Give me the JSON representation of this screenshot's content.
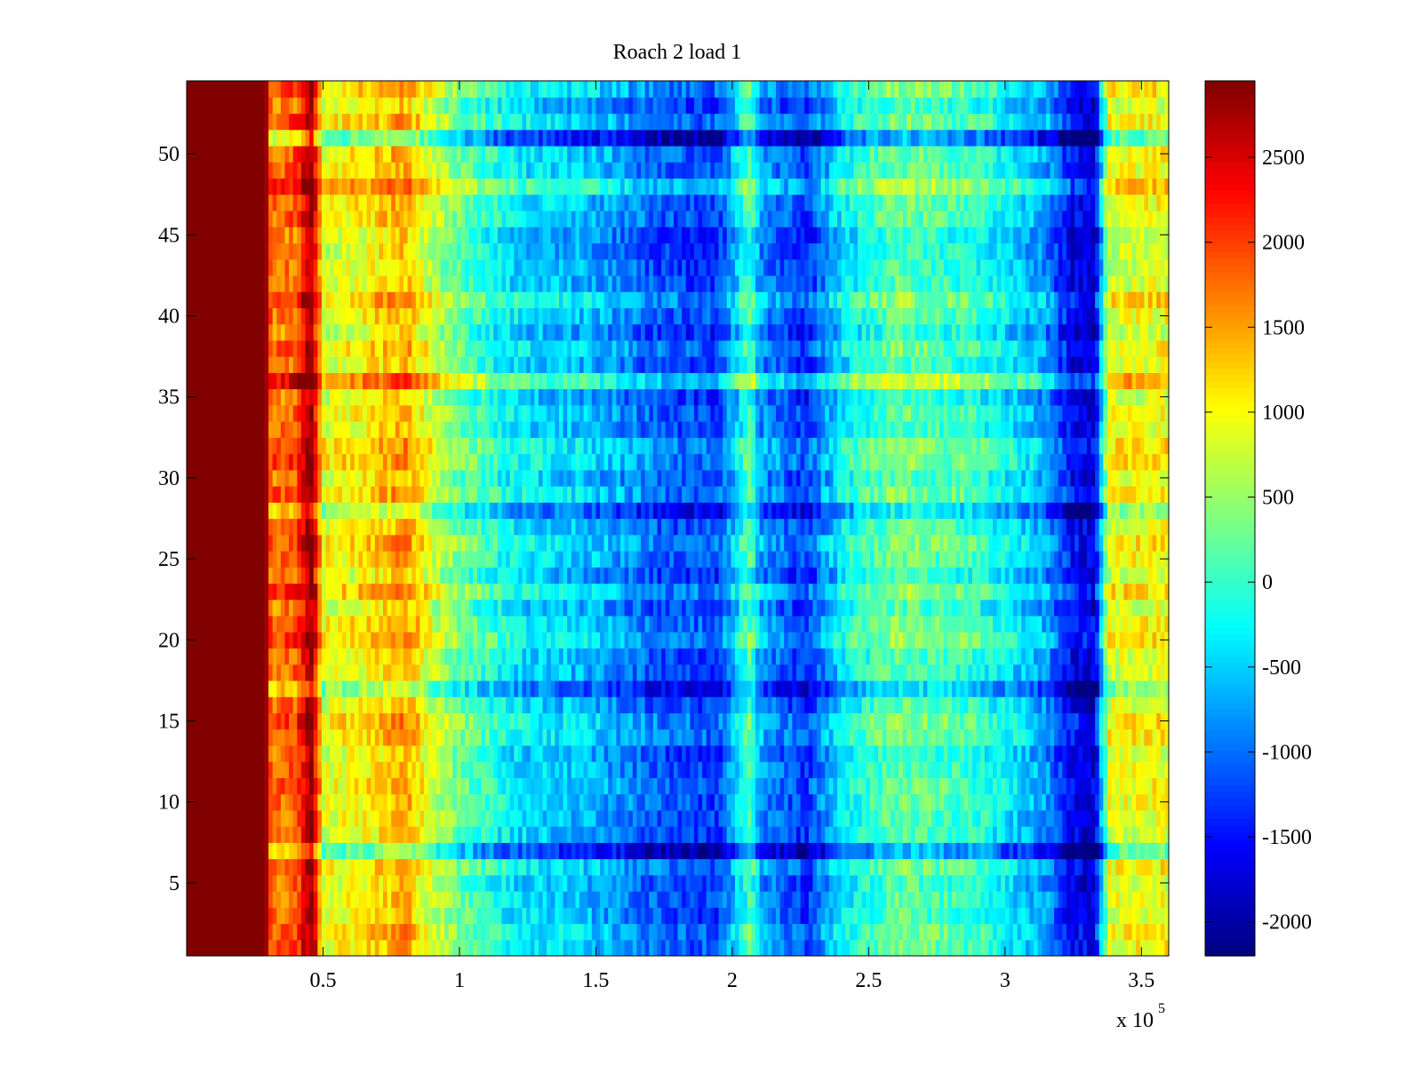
{
  "chart_data": {
    "type": "heatmap",
    "title": "Roach 2 load 1",
    "xlabel": "",
    "ylabel": "",
    "x_exponent_label": "x 10",
    "x_exponent_power": "5",
    "xlim": [
      0,
      3.6
    ],
    "ylim": [
      0.5,
      54.5
    ],
    "x_ticks": [
      0.5,
      1,
      1.5,
      2,
      2.5,
      3,
      3.5
    ],
    "x_tick_labels": [
      "0.5",
      "1",
      "1.5",
      "2",
      "2.5",
      "3",
      "3.5"
    ],
    "y_ticks": [
      5,
      10,
      15,
      20,
      25,
      30,
      35,
      40,
      45,
      50
    ],
    "y_tick_labels": [
      "5",
      "10",
      "15",
      "20",
      "25",
      "30",
      "35",
      "40",
      "45",
      "50"
    ],
    "rows": 54,
    "colormap": "jet",
    "color_range": [
      -2200,
      2950
    ],
    "colorbar_ticks": [
      2500,
      2000,
      1500,
      1000,
      500,
      0,
      -500,
      -1000,
      -1500,
      -2000
    ],
    "colorbar_tick_labels": [
      "2500",
      "2000",
      "1500",
      "1000",
      "500",
      "0",
      "-500",
      "-1000",
      "-1500",
      "-2000"
    ],
    "column_profile": [
      {
        "x": 0.0,
        "value": 2950
      },
      {
        "x": 0.29,
        "value": 2950
      },
      {
        "x": 0.31,
        "value": 1700
      },
      {
        "x": 0.4,
        "value": 1900
      },
      {
        "x": 0.46,
        "value": 2900
      },
      {
        "x": 0.5,
        "value": 900
      },
      {
        "x": 0.65,
        "value": 1100
      },
      {
        "x": 0.8,
        "value": 1500
      },
      {
        "x": 0.9,
        "value": 800
      },
      {
        "x": 1.0,
        "value": 300
      },
      {
        "x": 1.2,
        "value": -300
      },
      {
        "x": 1.5,
        "value": -600
      },
      {
        "x": 1.75,
        "value": -1100
      },
      {
        "x": 1.95,
        "value": -1200
      },
      {
        "x": 2.07,
        "value": 200
      },
      {
        "x": 2.1,
        "value": -700
      },
      {
        "x": 2.27,
        "value": -1300
      },
      {
        "x": 2.4,
        "value": -300
      },
      {
        "x": 2.6,
        "value": 300
      },
      {
        "x": 2.9,
        "value": 0
      },
      {
        "x": 3.15,
        "value": -700
      },
      {
        "x": 3.25,
        "value": -1600
      },
      {
        "x": 3.33,
        "value": -1700
      },
      {
        "x": 3.38,
        "value": 900
      },
      {
        "x": 3.6,
        "value": 1000
      }
    ],
    "row_offsets": [
      {
        "row": 7,
        "offset": -900
      },
      {
        "row": 17,
        "offset": -500
      },
      {
        "row": 28,
        "offset": -600
      },
      {
        "row": 36,
        "offset": 500
      },
      {
        "row": 48,
        "offset": 300
      },
      {
        "row": 51,
        "offset": -700
      }
    ]
  }
}
